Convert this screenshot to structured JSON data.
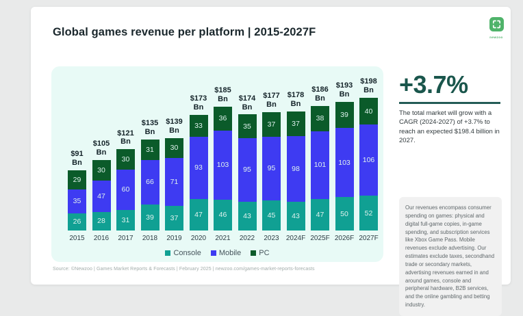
{
  "page": {
    "title": "Global games revenue per platform | 2015-2027F",
    "logo_text": "newzoo",
    "logo_color": "#4fb36a"
  },
  "chart_data": {
    "type": "bar",
    "stacked": true,
    "title": "Global games revenue per platform | 2015-2027F",
    "categories": [
      "2015",
      "2016",
      "2017",
      "2018",
      "2019",
      "2020",
      "2021",
      "2022",
      "2023",
      "2024F",
      "2025F",
      "2026F",
      "2027F"
    ],
    "series": [
      {
        "name": "Console",
        "color": "#10a093",
        "values": [
          26,
          28,
          31,
          39,
          37,
          47,
          46,
          43,
          45,
          43,
          47,
          50,
          52
        ]
      },
      {
        "name": "Mobile",
        "color": "#3e3bf2",
        "values": [
          35,
          47,
          60,
          66,
          71,
          93,
          103,
          95,
          95,
          98,
          101,
          103,
          106
        ]
      },
      {
        "name": "PC",
        "color": "#0b5b2a",
        "values": [
          29,
          30,
          30,
          31,
          30,
          33,
          36,
          35,
          37,
          37,
          38,
          39,
          40
        ]
      }
    ],
    "totals": [
      91,
      105,
      121,
      135,
      139,
      173,
      185,
      174,
      177,
      178,
      186,
      193,
      198
    ],
    "total_prefix": "$",
    "total_unit": "Bn",
    "legend": [
      "Console",
      "Mobile",
      "PC"
    ],
    "legend_position": "bottom",
    "gridlines": false,
    "value_unit": "USD billions"
  },
  "highlight": {
    "headline": "+3.7%",
    "description": "The total market will grow with a CAGR (2024-2027) of +3.7% to reach an expected $198.4 billion in 2027."
  },
  "disclaimer": "Our revenues encompass consumer spending on games: physical and digital full-game copies, in-game spending, and subscription services like Xbox Game Pass. Mobile revenues exclude advertising. Our estimates exclude taxes, secondhand trade or secondary markets, advertising revenues earned in and around games, console and peripheral hardware, B2B services, and the online gambling and betting industry.",
  "source": "Source: ©Newzoo | Games Market Reports & Forecasts | February 2025 | newzoo.com/games-market-reports-forecasts"
}
